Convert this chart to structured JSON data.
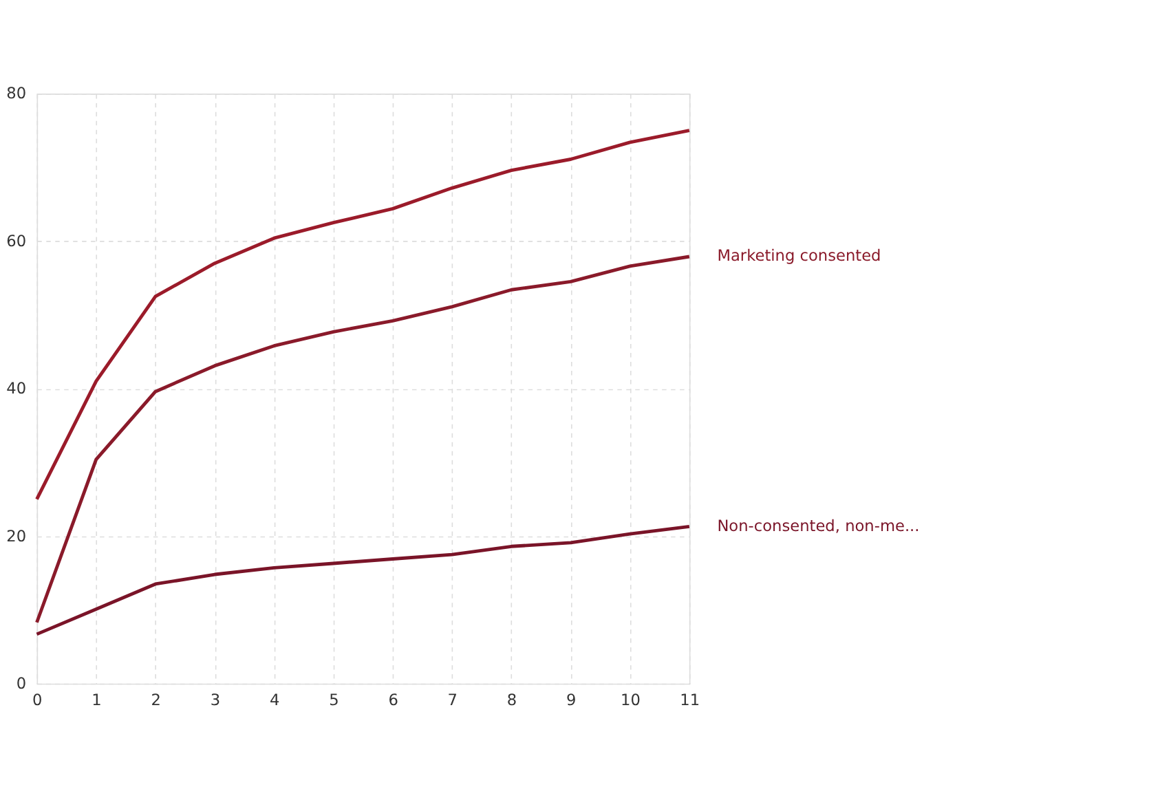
{
  "chart_data": {
    "type": "line",
    "x": [
      0,
      1,
      2,
      3,
      4,
      5,
      6,
      7,
      8,
      9,
      10,
      11
    ],
    "series": [
      {
        "color": "#9b1b2a",
        "values": [
          25,
          41,
          52.5,
          57,
          60.4,
          62.5,
          64.4,
          67.2,
          69.6,
          71.1,
          73.4,
          75
        ]
      },
      {
        "name": "Marketing consented",
        "color": "#8a1a2a",
        "values": [
          8.3,
          30.4,
          39.6,
          43.1,
          45.8,
          47.7,
          49.2,
          51.1,
          53.4,
          54.5,
          56.6,
          57.9
        ]
      },
      {
        "name": "Non-consented, non-me...",
        "color": "#7a1428",
        "values": [
          6.7,
          10.1,
          13.5,
          14.8,
          15.7,
          16.3,
          16.9,
          17.5,
          18.6,
          19.1,
          20.3,
          21.3
        ]
      }
    ],
    "xlim": [
      0,
      11
    ],
    "xticks": [
      0,
      1,
      2,
      3,
      4,
      5,
      6,
      7,
      8,
      9,
      10,
      11
    ],
    "ylim": [
      0,
      80
    ],
    "yticks": [
      0,
      20,
      40,
      60,
      80
    ],
    "grid": true,
    "legend": "right",
    "marker": "none",
    "line_style": "solid"
  }
}
